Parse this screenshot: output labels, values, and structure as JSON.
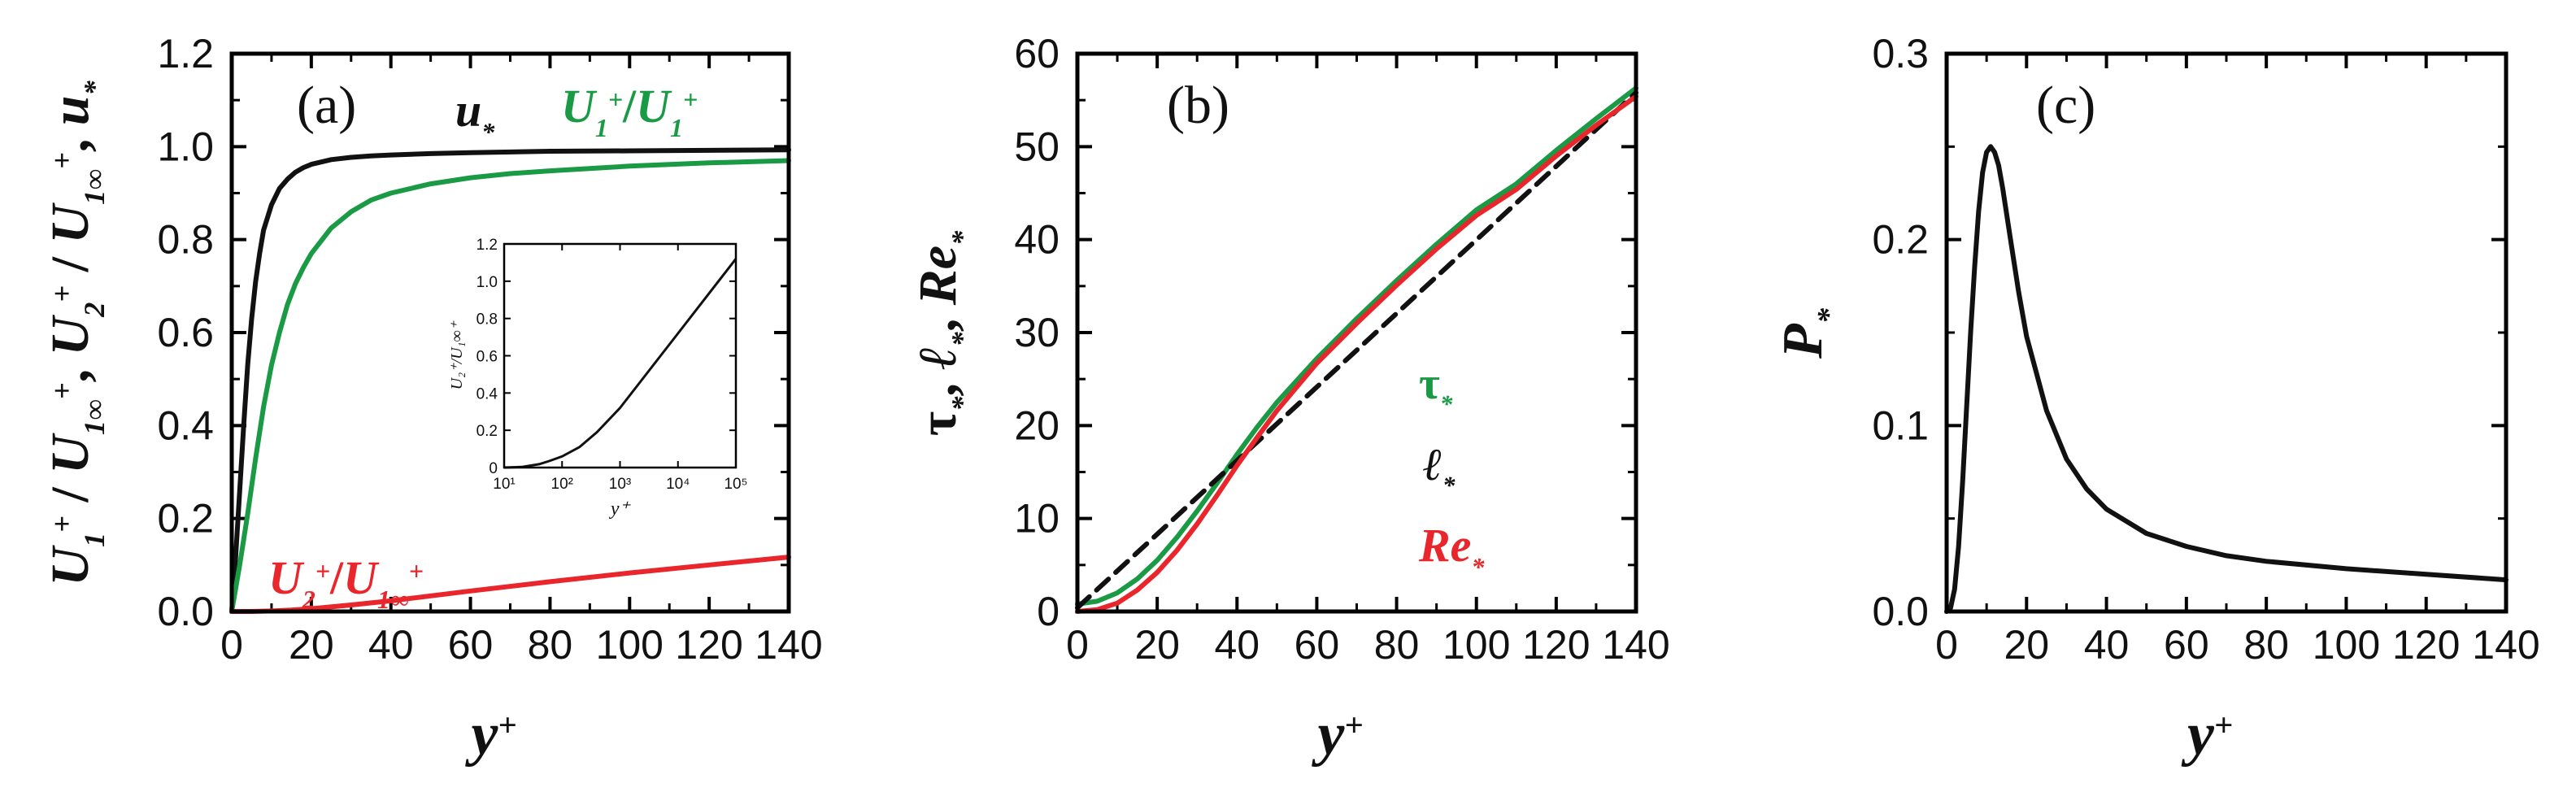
{
  "chart_data": [
    {
      "type": "line",
      "panel": "(a)",
      "xlabel": "y⁺",
      "ylabel": "U₁⁺/U₁∞⁺, U₂⁺/U₁∞⁺, u*",
      "xlim": [
        0,
        140
      ],
      "ylim": [
        0,
        1.2
      ],
      "xticks": [
        "0",
        "20",
        "40",
        "60",
        "80",
        "100",
        "120",
        "140"
      ],
      "yticks": [
        "0.0",
        "0.2",
        "0.4",
        "0.6",
        "0.8",
        "1.0",
        "1.2"
      ],
      "series": [
        {
          "name": "u*",
          "color": "#111111",
          "x": [
            0,
            1,
            2,
            3,
            4,
            5,
            6,
            7,
            8,
            10,
            12,
            14,
            16,
            18,
            20,
            25,
            30,
            35,
            40,
            50,
            60,
            80,
            100,
            120,
            140
          ],
          "y": [
            0,
            0.12,
            0.26,
            0.4,
            0.53,
            0.63,
            0.71,
            0.77,
            0.82,
            0.875,
            0.91,
            0.93,
            0.945,
            0.955,
            0.962,
            0.972,
            0.977,
            0.98,
            0.982,
            0.985,
            0.987,
            0.99,
            0.991,
            0.992,
            0.993
          ]
        },
        {
          "name": "U₁⁺/U₁∞⁺",
          "color": "#1a9a45",
          "x": [
            0,
            2,
            4,
            6,
            8,
            10,
            12,
            14,
            16,
            18,
            20,
            25,
            30,
            35,
            40,
            50,
            60,
            70,
            80,
            100,
            120,
            140
          ],
          "y": [
            0,
            0.1,
            0.21,
            0.33,
            0.44,
            0.53,
            0.6,
            0.66,
            0.705,
            0.74,
            0.77,
            0.825,
            0.86,
            0.885,
            0.9,
            0.92,
            0.933,
            0.942,
            0.948,
            0.958,
            0.965,
            0.97
          ]
        },
        {
          "name": "U₂⁺/U₁∞⁺",
          "color": "#e8262c",
          "x": [
            0,
            5,
            10,
            15,
            20,
            30,
            40,
            60,
            80,
            100,
            120,
            140
          ],
          "y": [
            0,
            0.0,
            0.001,
            0.003,
            0.006,
            0.014,
            0.023,
            0.044,
            0.064,
            0.083,
            0.1,
            0.117
          ]
        }
      ],
      "legend": [
        {
          "label": "u*",
          "color": "#111111"
        },
        {
          "label": "U₁⁺/U₁∞⁺",
          "color": "#1a9a45"
        },
        {
          "label": "U₂⁺/U₁∞⁺",
          "color": "#e8262c"
        }
      ],
      "inset": {
        "xlabel": "y⁺",
        "ylabel": "U₂⁺/U₁∞⁺",
        "xscale": "log",
        "xlim_exp": [
          1,
          5
        ],
        "ylim": [
          0,
          1.2
        ],
        "xticks": [
          "10¹",
          "10²",
          "10³",
          "10⁴",
          "10⁵"
        ],
        "yticks": [
          "0",
          "0.2",
          "0.4",
          "0.6",
          "0.8",
          "1.0",
          "1.2"
        ],
        "series": [
          {
            "name": "U₂⁺/U₁∞⁺",
            "color": "#111111",
            "x": [
              10,
              20,
              40,
              60,
              100,
              200,
              400,
              1000,
              10000,
              100000
            ],
            "y": [
              0,
              0.003,
              0.018,
              0.035,
              0.06,
              0.11,
              0.19,
              0.32,
              0.72,
              1.12
            ]
          }
        ]
      }
    },
    {
      "type": "line",
      "panel": "(b)",
      "xlabel": "y⁺",
      "ylabel": "τ*, ℓ*, Re*",
      "xlim": [
        0,
        140
      ],
      "ylim": [
        0,
        60
      ],
      "xticks": [
        "0",
        "20",
        "40",
        "60",
        "80",
        "100",
        "120",
        "140"
      ],
      "yticks": [
        "0",
        "10",
        "20",
        "30",
        "40",
        "50",
        "60"
      ],
      "series": [
        {
          "name": "τ*",
          "color": "#1a9a45",
          "x": [
            0,
            5,
            10,
            15,
            20,
            25,
            30,
            35,
            40,
            45,
            50,
            60,
            70,
            80,
            90,
            100,
            110,
            120,
            130,
            140
          ],
          "y": [
            0.8,
            1.1,
            2.0,
            3.5,
            5.5,
            8.0,
            10.8,
            13.8,
            16.9,
            19.8,
            22.5,
            27.2,
            31.5,
            35.6,
            39.5,
            43.2,
            46.0,
            49.6,
            53.0,
            56.3
          ]
        },
        {
          "name": "ℓ*",
          "color": "#111111",
          "dash": true,
          "x": [
            0,
            140
          ],
          "y": [
            0.4,
            55.8
          ]
        },
        {
          "name": "Re*",
          "color": "#e8262c",
          "x": [
            0,
            5,
            10,
            15,
            20,
            25,
            30,
            35,
            40,
            45,
            50,
            60,
            70,
            80,
            90,
            100,
            110,
            120,
            130,
            140
          ],
          "y": [
            0,
            0.2,
            0.9,
            2.3,
            4.2,
            6.6,
            9.4,
            12.5,
            15.7,
            18.7,
            21.6,
            26.7,
            31.0,
            35.1,
            39.0,
            42.6,
            45.4,
            49.0,
            52.3,
            55.4
          ]
        }
      ],
      "legend": [
        {
          "label": "τ*",
          "color": "#1a9a45"
        },
        {
          "label": "ℓ*",
          "color": "#111111"
        },
        {
          "label": "Re*",
          "color": "#e8262c"
        }
      ]
    },
    {
      "type": "line",
      "panel": "(c)",
      "xlabel": "y⁺",
      "ylabel": "P*",
      "xlim": [
        0,
        140
      ],
      "ylim": [
        0,
        0.3
      ],
      "xticks": [
        "0",
        "20",
        "40",
        "60",
        "80",
        "100",
        "120",
        "140"
      ],
      "yticks": [
        "0.0",
        "0.1",
        "0.2",
        "0.3"
      ],
      "series": [
        {
          "name": "P*",
          "color": "#111111",
          "x": [
            0,
            1,
            2,
            3,
            4,
            5,
            6,
            7,
            8,
            9,
            10,
            11,
            12,
            13,
            14,
            16,
            18,
            20,
            25,
            30,
            35,
            40,
            50,
            60,
            70,
            80,
            100,
            120,
            140
          ],
          "y": [
            0,
            0.002,
            0.012,
            0.035,
            0.07,
            0.11,
            0.15,
            0.185,
            0.215,
            0.236,
            0.247,
            0.25,
            0.247,
            0.24,
            0.228,
            0.2,
            0.172,
            0.148,
            0.108,
            0.082,
            0.066,
            0.055,
            0.042,
            0.035,
            0.03,
            0.027,
            0.023,
            0.02,
            0.017
          ]
        }
      ]
    }
  ]
}
